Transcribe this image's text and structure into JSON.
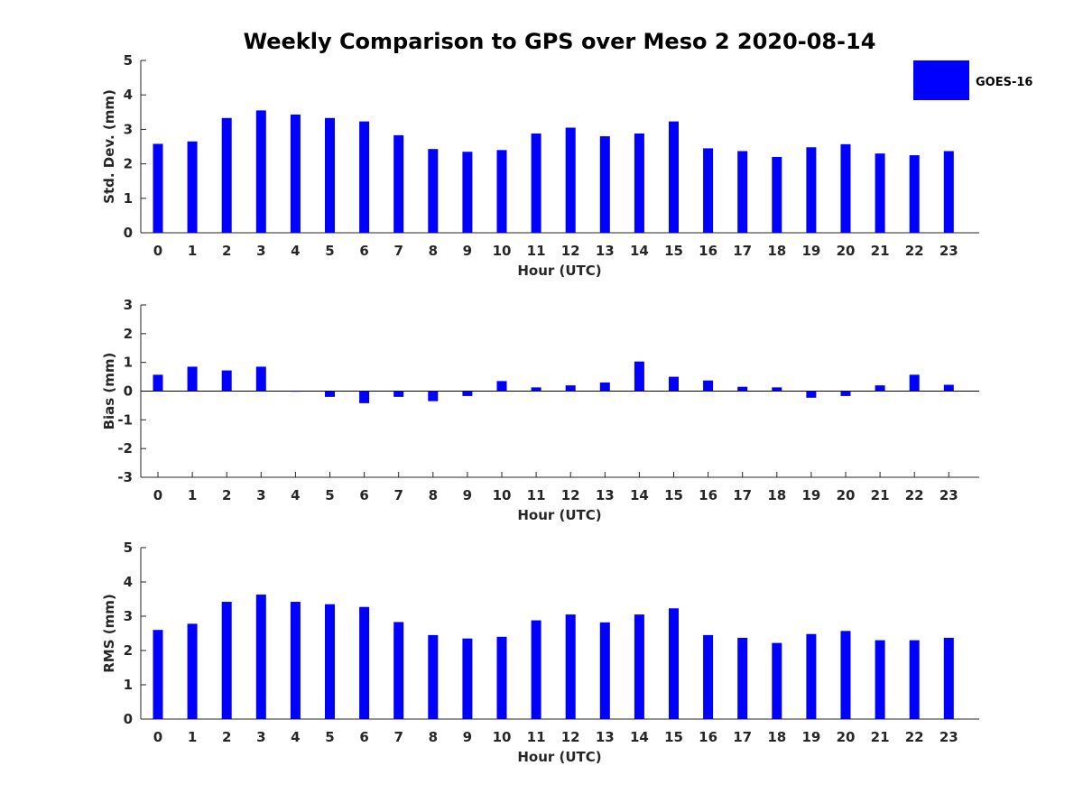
{
  "figure_title": "Weekly Comparison to GPS over Meso 2 2020-08-14",
  "legend": {
    "label": "GOES-16",
    "color": "#0000ff"
  },
  "chart_data": [
    {
      "type": "bar",
      "name": "std-dev",
      "xlabel": "Hour (UTC)",
      "ylabel": "Std. Dev. (mm)",
      "ylim": [
        0,
        5
      ],
      "yticks": [
        0,
        1,
        2,
        3,
        4,
        5
      ],
      "categories": [
        "0",
        "1",
        "2",
        "3",
        "4",
        "5",
        "6",
        "7",
        "8",
        "9",
        "10",
        "11",
        "12",
        "13",
        "14",
        "15",
        "16",
        "17",
        "18",
        "19",
        "20",
        "21",
        "22",
        "23"
      ],
      "series": [
        {
          "name": "GOES-16",
          "color": "#0000ff",
          "values": [
            2.58,
            2.65,
            3.33,
            3.55,
            3.43,
            3.33,
            3.23,
            2.83,
            2.43,
            2.35,
            2.4,
            2.88,
            3.05,
            2.8,
            2.88,
            3.23,
            2.45,
            2.37,
            2.2,
            2.48,
            2.57,
            2.3,
            2.25,
            2.37
          ]
        }
      ]
    },
    {
      "type": "bar",
      "name": "bias",
      "xlabel": "Hour (UTC)",
      "ylabel": "Bias (mm)",
      "ylim": [
        -3,
        3
      ],
      "yticks": [
        -3,
        -2,
        -1,
        0,
        1,
        2,
        3
      ],
      "categories": [
        "0",
        "1",
        "2",
        "3",
        "4",
        "5",
        "6",
        "7",
        "8",
        "9",
        "10",
        "11",
        "12",
        "13",
        "14",
        "15",
        "16",
        "17",
        "18",
        "19",
        "20",
        "21",
        "22",
        "23"
      ],
      "series": [
        {
          "name": "GOES-16",
          "color": "#0000ff",
          "values": [
            0.57,
            0.85,
            0.72,
            0.85,
            -0.02,
            -0.2,
            -0.42,
            -0.2,
            -0.35,
            -0.17,
            0.35,
            0.13,
            0.2,
            0.3,
            1.03,
            0.5,
            0.37,
            0.15,
            0.13,
            -0.23,
            -0.17,
            0.2,
            0.57,
            0.22
          ]
        }
      ]
    },
    {
      "type": "bar",
      "name": "rms",
      "xlabel": "Hour (UTC)",
      "ylabel": "RMS (mm)",
      "ylim": [
        0,
        5
      ],
      "yticks": [
        0,
        1,
        2,
        3,
        4,
        5
      ],
      "categories": [
        "0",
        "1",
        "2",
        "3",
        "4",
        "5",
        "6",
        "7",
        "8",
        "9",
        "10",
        "11",
        "12",
        "13",
        "14",
        "15",
        "16",
        "17",
        "18",
        "19",
        "20",
        "21",
        "22",
        "23"
      ],
      "series": [
        {
          "name": "GOES-16",
          "color": "#0000ff",
          "values": [
            2.6,
            2.78,
            3.42,
            3.63,
            3.42,
            3.35,
            3.27,
            2.83,
            2.45,
            2.35,
            2.4,
            2.88,
            3.05,
            2.82,
            3.05,
            3.23,
            2.45,
            2.37,
            2.22,
            2.48,
            2.57,
            2.3,
            2.3,
            2.37
          ]
        }
      ]
    }
  ]
}
